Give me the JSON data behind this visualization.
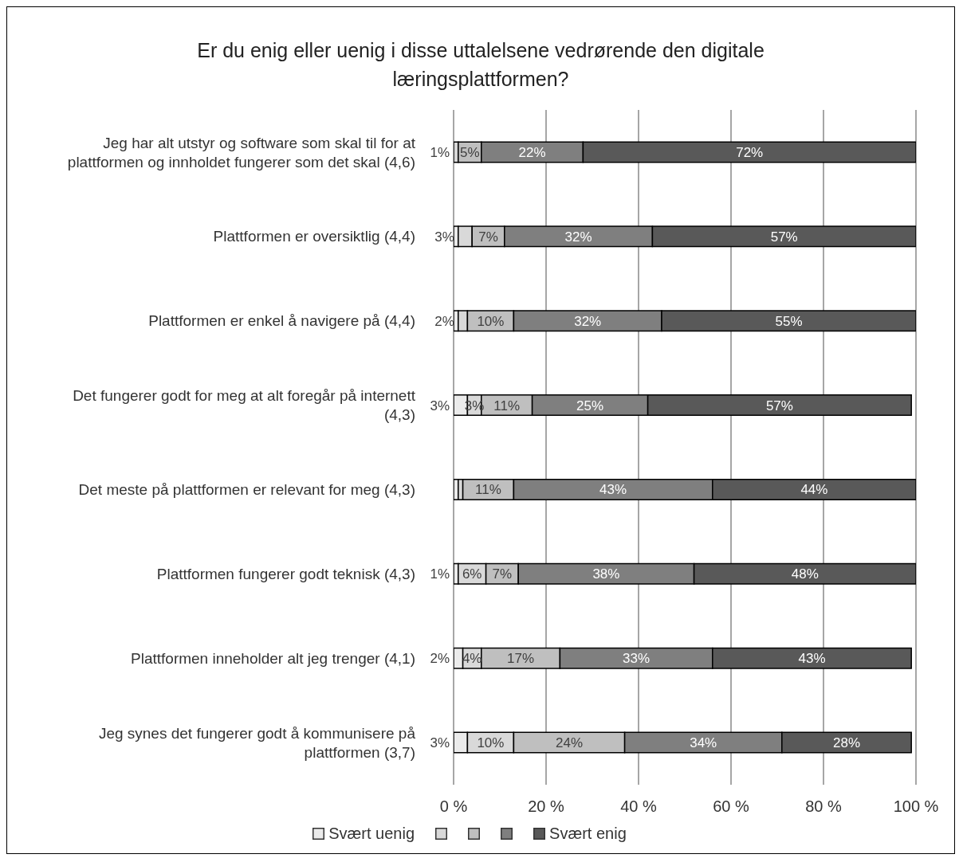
{
  "chart_data": {
    "type": "bar",
    "orientation": "horizontal",
    "stacked": true,
    "title": "Er du enig eller uenig i disse uttalelsene vedrørende den digitale læringsplattformen?",
    "categories": [
      "Jeg har alt utstyr og software som skal til for at plattformen og innholdet fungerer som det skal (4,6)",
      "Plattformen er oversiktlig (4,4)",
      "Plattformen er enkel å navigere på (4,4)",
      "Det fungerer godt for meg at alt foregår på internett (4,3)",
      "Det meste på plattformen er relevant for meg (4,3)",
      "Plattformen fungerer godt teknisk (4,3)",
      "Plattformen inneholder alt jeg trenger (4,1)",
      "Jeg synes det fungerer godt å kommunisere på plattformen (3,7)"
    ],
    "series": [
      {
        "name": "Svært uenig",
        "color": "#ebebeb",
        "values": [
          0,
          1,
          1,
          3,
          1,
          1,
          2,
          3
        ],
        "value_labels": [
          null,
          null,
          null,
          "3%",
          null,
          "1%",
          "2%",
          "3%"
        ]
      },
      {
        "name": null,
        "color": "#d9d9d9",
        "values": [
          1,
          3,
          2,
          3,
          1,
          6,
          4,
          10
        ],
        "value_labels": [
          "1%",
          "3%",
          "2%",
          "3%",
          null,
          "6%",
          "4%",
          "10%"
        ]
      },
      {
        "name": null,
        "color": "#bfbfbf",
        "values": [
          5,
          7,
          10,
          11,
          11,
          7,
          17,
          24
        ],
        "value_labels": [
          "5%",
          "7%",
          "10%",
          "11%",
          "11%",
          "7%",
          "17%",
          "24%"
        ]
      },
      {
        "name": null,
        "color": "#7f7f7f",
        "values": [
          22,
          32,
          32,
          25,
          43,
          38,
          33,
          34
        ],
        "value_labels": [
          "22%",
          "32%",
          "32%",
          "25%",
          "43%",
          "38%",
          "33%",
          "34%"
        ]
      },
      {
        "name": "Svært enig",
        "color": "#595959",
        "values": [
          72,
          57,
          55,
          57,
          44,
          48,
          43,
          28
        ],
        "value_labels": [
          "72%",
          "57%",
          "55%",
          "57%",
          "44%",
          "48%",
          "43%",
          "28%"
        ]
      }
    ],
    "xlim": [
      0,
      100
    ],
    "xticks": [
      {
        "value": 0,
        "label": "0 %"
      },
      {
        "value": 20,
        "label": "20 %"
      },
      {
        "value": 40,
        "label": "40 %"
      },
      {
        "value": 60,
        "label": "60 %"
      },
      {
        "value": 80,
        "label": "80 %"
      },
      {
        "value": 100,
        "label": "100 %"
      }
    ],
    "grid": "x",
    "legend": "bottom"
  }
}
